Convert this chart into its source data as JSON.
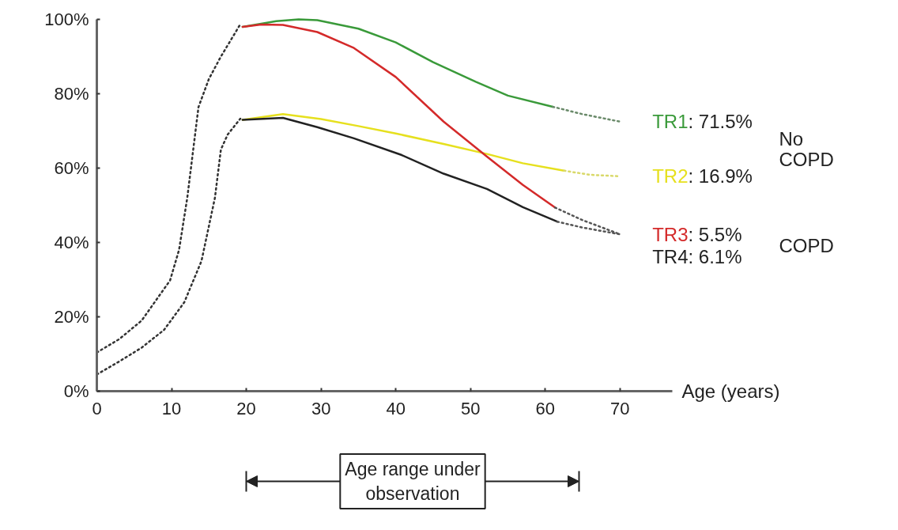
{
  "chart_data": {
    "type": "line",
    "xlabel": "Age (years)",
    "xlim": [
      0,
      77
    ],
    "ylim": [
      0,
      100
    ],
    "xticks": [
      0,
      10,
      20,
      30,
      40,
      50,
      60,
      70
    ],
    "yticks": [
      {
        "value": 0,
        "label": "0%"
      },
      {
        "value": 20,
        "label": "20%"
      },
      {
        "value": 40,
        "label": "40%"
      },
      {
        "value": 60,
        "label": "60%"
      },
      {
        "value": 80,
        "label": "80%"
      },
      {
        "value": 100,
        "label": "100%"
      }
    ],
    "grid": false,
    "series": [
      {
        "name": "TR1",
        "color": "#3a9a3a",
        "line_style": "solid",
        "x": [
          19.5,
          24,
          27,
          29.5,
          35,
          40,
          45,
          50.7,
          55,
          61
        ],
        "values": [
          98,
          99.5,
          100,
          99.8,
          97.5,
          93.8,
          88.5,
          83.2,
          79.5,
          76.5
        ]
      },
      {
        "name": "TR2",
        "color": "#e6e01e",
        "line_style": "solid",
        "x": [
          19.5,
          24.9,
          30,
          35,
          40,
          46.4,
          52.2,
          57,
          62.5
        ],
        "values": [
          73,
          74.5,
          73.2,
          71.3,
          69.3,
          66.5,
          63.8,
          61.3,
          59.3
        ]
      },
      {
        "name": "TR3",
        "color": "#d42a2a",
        "line_style": "solid",
        "x": [
          19.5,
          22,
          24.9,
          29.5,
          34.4,
          40,
          46.4,
          52.2,
          57,
          61.3
        ],
        "values": [
          98,
          98.6,
          98.5,
          96.6,
          92.3,
          84.5,
          72.5,
          63.1,
          55.5,
          49.4
        ]
      },
      {
        "name": "TR4",
        "color": "#222222",
        "line_style": "solid",
        "x": [
          19.5,
          24.9,
          29.5,
          34.4,
          40.8,
          46.4,
          52.2,
          57,
          61.6
        ],
        "values": [
          73,
          73.5,
          71,
          68,
          63.5,
          58.5,
          54.4,
          49.5,
          45.6
        ]
      },
      {
        "color": "#6a8a6a",
        "line_style": "dotted",
        "x": [
          61,
          65,
          70
        ],
        "values": [
          76.5,
          74.5,
          72.5
        ]
      },
      {
        "color": "#d9d96a",
        "line_style": "dotted",
        "x": [
          62.5,
          66,
          70
        ],
        "values": [
          59.3,
          58.2,
          57.8
        ]
      },
      {
        "color": "#555555",
        "line_style": "dotted",
        "x": [
          61.3,
          65,
          70
        ],
        "values": [
          49.4,
          46,
          42.2
        ]
      },
      {
        "color": "#555555",
        "line_style": "dotted",
        "x": [
          61.6,
          65,
          70
        ],
        "values": [
          45.6,
          44,
          42.2
        ]
      },
      {
        "color": "#333333",
        "line_style": "dotted",
        "x": [
          0,
          3,
          6,
          9.8,
          11,
          12.1,
          13.6,
          15,
          16.6,
          19.2
        ],
        "values": [
          10.4,
          14,
          19,
          29.8,
          38,
          52,
          76.4,
          84,
          90,
          98.7
        ]
      },
      {
        "color": "#333333",
        "line_style": "dotted",
        "x": [
          0,
          3,
          6,
          9,
          11.7,
          14,
          15.8,
          16.6,
          17.5,
          19.2
        ],
        "values": [
          4.5,
          8,
          11.7,
          16.5,
          23.9,
          35,
          52,
          65,
          69,
          73.3
        ]
      }
    ],
    "annotations": [
      ": 71.5%",
      ": 16.9%",
      ": 5.5%",
      ": 6.1%",
      "No COPD",
      "COPD",
      "Age range under observation"
    ]
  }
}
